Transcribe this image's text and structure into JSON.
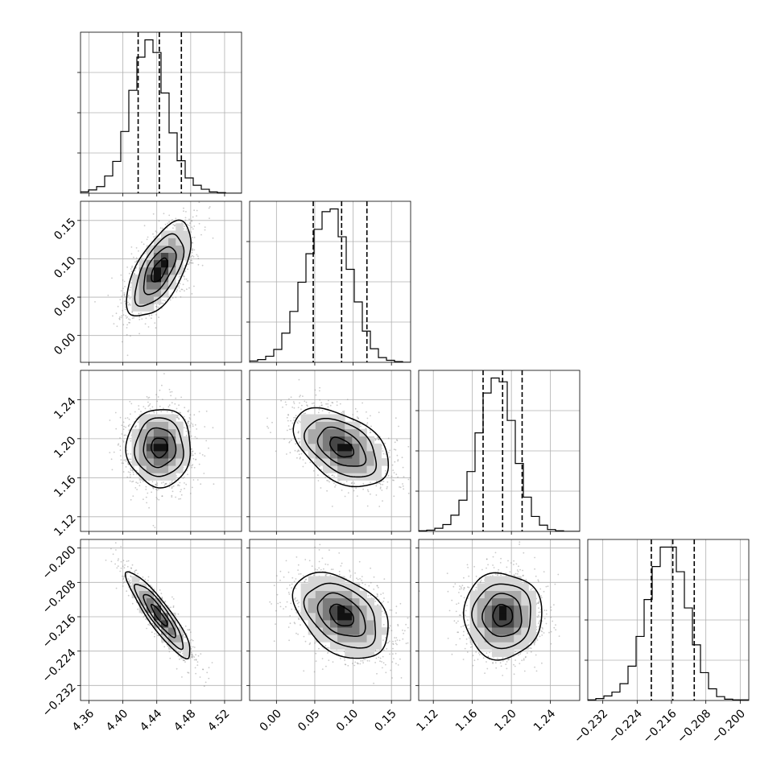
{
  "figure": {
    "background": "#ffffff",
    "frame_color": "#000000",
    "grid_color": "#b0b0b0",
    "scatter_color": "#8a8a8a",
    "contour_color": "#000000",
    "density_colors": [
      "#ffffff",
      "#d6d6d6",
      "#aaaaaa",
      "#7a7a7a",
      "#474747",
      "#111111"
    ]
  },
  "chart_data": {
    "type": "corner",
    "grid": true,
    "parameters": [
      {
        "range": [
          4.35,
          4.54
        ],
        "ticks": [
          4.36,
          4.4,
          4.44,
          4.48,
          4.52
        ],
        "tick_labels": [
          "4.36",
          "4.40",
          "4.44",
          "4.48",
          "4.52"
        ],
        "quantiles": [
          4.418,
          4.443,
          4.469
        ]
      },
      {
        "range": [
          -0.035,
          0.175
        ],
        "ticks": [
          0.0,
          0.05,
          0.1,
          0.15
        ],
        "tick_labels": [
          "0.00",
          "0.05",
          "0.10",
          "0.15"
        ],
        "quantiles": [
          0.048,
          0.085,
          0.118
        ]
      },
      {
        "range": [
          1.105,
          1.27
        ],
        "ticks": [
          1.12,
          1.16,
          1.2,
          1.24
        ],
        "tick_labels": [
          "1.12",
          "1.16",
          "1.20",
          "1.24"
        ],
        "quantiles": [
          1.171,
          1.191,
          1.211
        ]
      },
      {
        "range": [
          -0.2355,
          -0.198
        ],
        "ticks": [
          -0.2,
          -0.208,
          -0.216,
          -0.224,
          -0.232
        ],
        "tick_labels": [
          "−0.200",
          "−0.208",
          "−0.216",
          "−0.224",
          "−0.232"
        ],
        "quantiles": [
          -0.2207,
          -0.2157,
          -0.2107
        ]
      }
    ],
    "marginals": [
      {
        "param": 0,
        "bin_edges_start": 4.35,
        "bin_width": 0.0095,
        "counts": [
          2,
          5,
          10,
          26,
          48,
          93,
          155,
          205,
          231,
          212,
          151,
          91,
          49,
          23,
          12,
          6,
          2,
          1,
          0,
          0
        ]
      },
      {
        "param": 1,
        "bin_edges_start": -0.035,
        "bin_width": 0.0105,
        "counts": [
          2,
          4,
          9,
          19,
          43,
          75,
          118,
          160,
          196,
          222,
          226,
          185,
          137,
          89,
          46,
          20,
          7,
          3,
          1,
          0
        ]
      },
      {
        "param": 2,
        "bin_edges_start": 1.105,
        "bin_width": 0.00825,
        "counts": [
          1,
          2,
          5,
          11,
          26,
          50,
          96,
          158,
          222,
          246,
          240,
          178,
          109,
          55,
          24,
          10,
          3,
          1,
          0,
          0
        ]
      },
      {
        "param": 3,
        "bin_edges_start": -0.2355,
        "bin_width": 0.001875,
        "counts": [
          1,
          3,
          7,
          13,
          26,
          53,
          99,
          156,
          207,
          237,
          237,
          199,
          143,
          86,
          43,
          18,
          6,
          2,
          1,
          1
        ]
      }
    ],
    "pairs": [
      {
        "x": 0,
        "y": 1,
        "mean": [
          4.443,
          0.085
        ],
        "sd": [
          0.019,
          0.031
        ],
        "rho": 0.62
      },
      {
        "x": 0,
        "y": 2,
        "mean": [
          4.443,
          1.191
        ],
        "sd": [
          0.019,
          0.02
        ],
        "rho": 0.0
      },
      {
        "x": 1,
        "y": 2,
        "mean": [
          0.085,
          1.191
        ],
        "sd": [
          0.031,
          0.02
        ],
        "rho": -0.45
      },
      {
        "x": 0,
        "y": 3,
        "mean": [
          4.443,
          -0.2157
        ],
        "sd": [
          0.019,
          0.005
        ],
        "rho": -0.9
      },
      {
        "x": 1,
        "y": 3,
        "mean": [
          0.085,
          -0.2157
        ],
        "sd": [
          0.031,
          0.005
        ],
        "rho": -0.4
      },
      {
        "x": 2,
        "y": 3,
        "mean": [
          1.191,
          -0.2157
        ],
        "sd": [
          0.02,
          0.005
        ],
        "rho": 0.0
      }
    ],
    "contour_levels_sigma": [
      0.5,
      1.0,
      1.5,
      2.0
    ]
  }
}
